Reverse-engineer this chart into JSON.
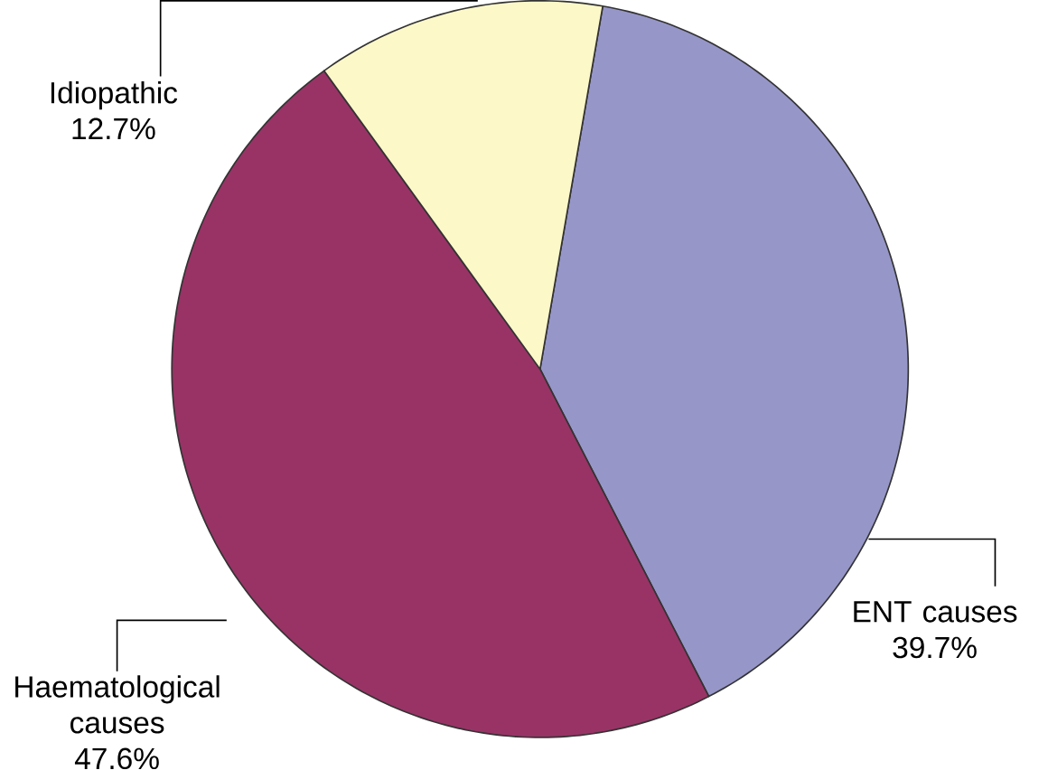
{
  "chart_data": {
    "type": "pie",
    "categories": [
      "ENT causes",
      "Haematological causes",
      "Idiopathic"
    ],
    "values": [
      39.7,
      47.6,
      12.7
    ],
    "value_labels": [
      "39.7%",
      "47.6%",
      "12.7%"
    ],
    "colors": [
      "#9696c8",
      "#993366",
      "#fdf8c8"
    ]
  }
}
